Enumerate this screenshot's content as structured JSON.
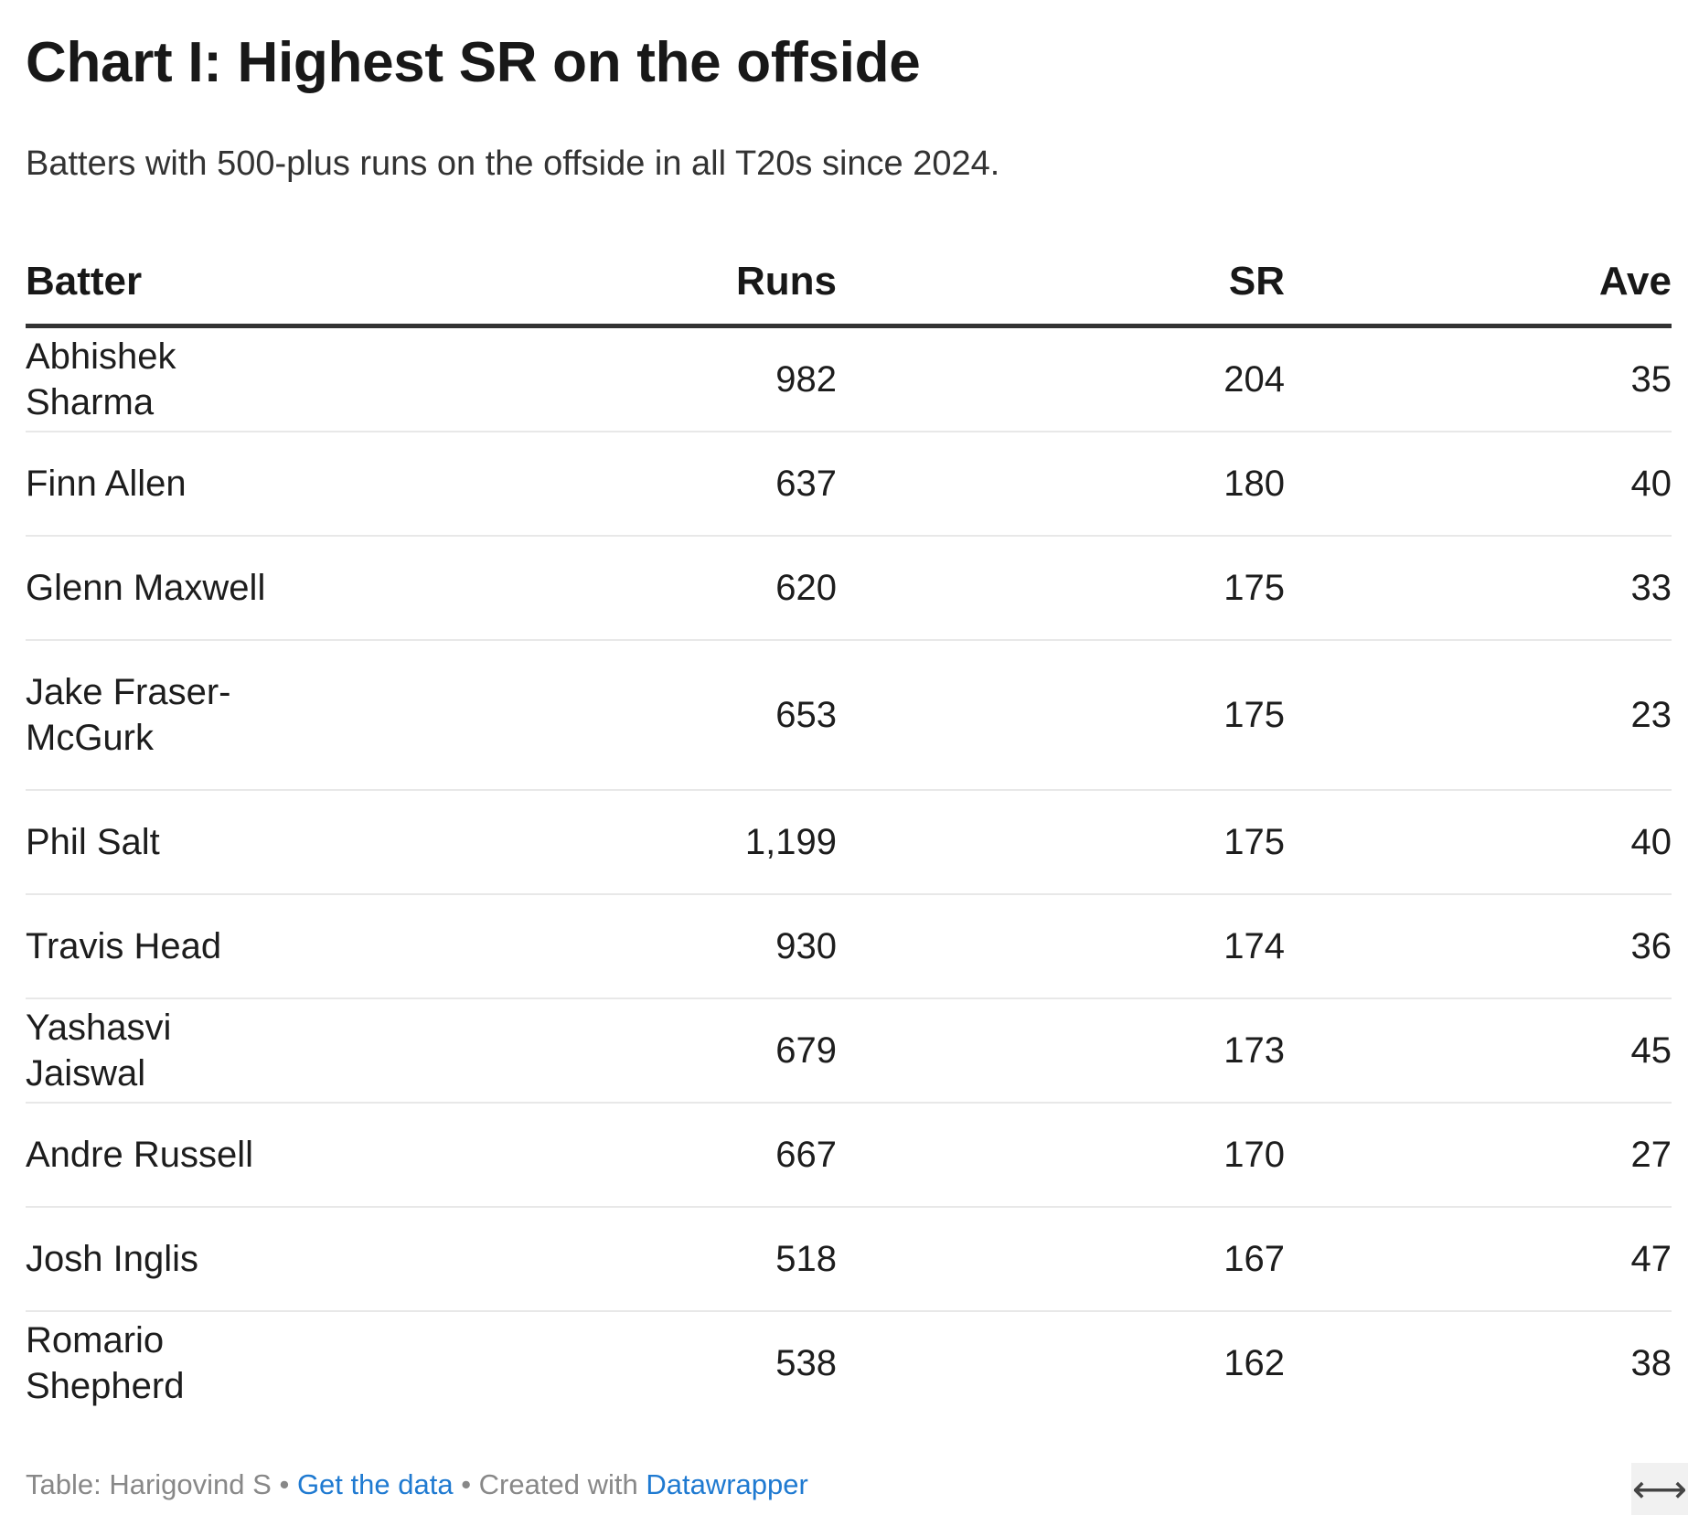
{
  "title": "Chart I: Highest SR on the offside",
  "subtitle": "Batters with 500-plus runs on the offside in all T20s since 2024.",
  "chart_data": {
    "type": "table",
    "columns": [
      "Batter",
      "Runs",
      "SR",
      "Ave"
    ],
    "rows": [
      {
        "batter": "Abhishek Sharma",
        "runs": "982",
        "sr": "204",
        "ave": "35"
      },
      {
        "batter": "Finn Allen",
        "runs": "637",
        "sr": "180",
        "ave": "40"
      },
      {
        "batter": "Glenn Maxwell",
        "runs": "620",
        "sr": "175",
        "ave": "33"
      },
      {
        "batter": "Jake Fraser-McGurk",
        "runs": "653",
        "sr": "175",
        "ave": "23"
      },
      {
        "batter": "Phil Salt",
        "runs": "1,199",
        "sr": "175",
        "ave": "40"
      },
      {
        "batter": "Travis Head",
        "runs": "930",
        "sr": "174",
        "ave": "36"
      },
      {
        "batter": "Yashasvi Jaiswal",
        "runs": "679",
        "sr": "173",
        "ave": "45"
      },
      {
        "batter": "Andre Russell",
        "runs": "667",
        "sr": "170",
        "ave": "27"
      },
      {
        "batter": "Josh Inglis",
        "runs": "518",
        "sr": "167",
        "ave": "47"
      },
      {
        "batter": "Romario Shepherd",
        "runs": "538",
        "sr": "162",
        "ave": "38"
      }
    ]
  },
  "footer": {
    "source": "Table: Harigovind S",
    "separator": "•",
    "data_link": "Get the data",
    "created_with": "Created with",
    "tool_link": "Datawrapper"
  },
  "expand_icon": {
    "name": "horizontal-expand-icon",
    "glyph": "⟷"
  },
  "colors": {
    "link": "#1f7ad1",
    "header_rule": "#333333",
    "row_rule": "#e8e8e8",
    "footer_text": "#888888"
  }
}
